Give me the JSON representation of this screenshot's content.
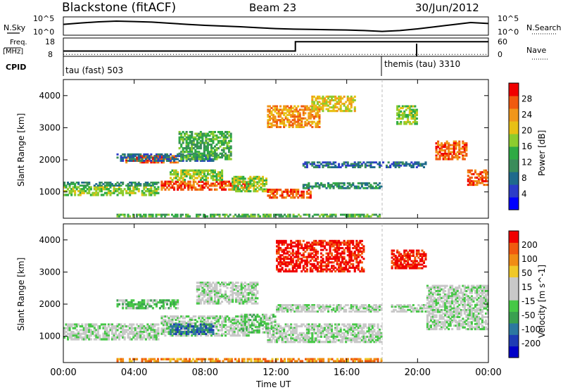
{
  "header": {
    "station": "Blackstone (fitACF)",
    "beam": "Beam 23",
    "date": "30/Jun/2012"
  },
  "left_labels": {
    "nsky": "N.Sky",
    "freq": "Freq.",
    "freq_unit": "[MHz]",
    "cpid": "CPID"
  },
  "right_labels": {
    "nsearch": "N.Search",
    "nave": "Nave"
  },
  "cpid_labels": [
    {
      "text": "tau (fast) 503"
    },
    {
      "text": "themis (tau) 3310"
    }
  ],
  "colors": {
    "power": [
      "#0000ff",
      "#2c3cc8",
      "#1f6a8c",
      "#3a8c5a",
      "#2eaa44",
      "#8ccc2e",
      "#e8c014",
      "#f0961a",
      "#f05a0f",
      "#f00000"
    ],
    "velocity": [
      "#0000c8",
      "#1e3cb4",
      "#2c78a0",
      "#3aa050",
      "#46c846",
      "#c8c8c8",
      "#c8c8c8",
      "#f0c828",
      "#f08c14",
      "#f05a0f",
      "#f00000"
    ]
  },
  "chart_data": [
    {
      "type": "line",
      "title": "",
      "xlabel": "",
      "ylabel": "N.Sky",
      "ylabel_right": "N.Search",
      "ticks_left": [
        "10^5",
        "10^0"
      ],
      "ticks_right": [
        "10^5",
        "10^0"
      ],
      "x_hours": [
        0,
        1,
        2,
        3,
        4,
        5,
        6,
        7,
        8,
        9,
        10,
        11,
        12,
        13,
        14,
        15,
        16,
        17,
        18,
        19,
        20,
        21,
        22,
        23,
        24
      ],
      "series": [
        {
          "name": "N.Sky",
          "values": [
            0.62,
            0.72,
            0.8,
            0.85,
            0.82,
            0.78,
            0.7,
            0.62,
            0.55,
            0.5,
            0.45,
            0.38,
            0.32,
            0.28,
            0.26,
            0.24,
            0.22,
            0.18,
            0.12,
            0.18,
            0.3,
            0.45,
            0.6,
            0.75,
            0.68
          ]
        }
      ]
    },
    {
      "type": "line",
      "title": "",
      "ylabel": "Freq. [MHz]",
      "ylabel_right": "Nave",
      "ticks_left": [
        "18",
        "8"
      ],
      "ticks_right": [
        "60",
        "0"
      ],
      "series": [
        {
          "name": "Freq.",
          "points": [
            [
              0,
              10.5
            ],
            [
              13.1,
              10.5
            ],
            [
              13.1,
              16.5
            ],
            [
              24,
              16.5
            ]
          ]
        },
        {
          "name": "Nave",
          "points": [
            [
              0,
              2
            ],
            [
              24,
              2
            ]
          ]
        }
      ],
      "cpid_changes": [
        [
          0,
          "tau (fast) 503"
        ],
        [
          18.0,
          "themis (tau) 3310"
        ]
      ],
      "marker_hours": [
        0,
        18.0,
        20.0
      ]
    },
    {
      "type": "heatmap",
      "title": "",
      "xlabel": "",
      "ylabel": "Slant Range [km]",
      "ylim": [
        180,
        4500
      ],
      "yticks": [
        "1000",
        "2000",
        "3000",
        "4000"
      ],
      "colorbar_label": "Power [dB]",
      "colorbar_ticks": [
        "28",
        "24",
        "20",
        "16",
        "12",
        "8",
        "4"
      ],
      "regions": [
        {
          "t": [
            0.0,
            5.4
          ],
          "r": [
            880,
            1180
          ],
          "level": 5
        },
        {
          "t": [
            0.0,
            5.4
          ],
          "r": [
            1180,
            1320
          ],
          "level": 3
        },
        {
          "t": [
            3.5,
            6.5
          ],
          "r": [
            1900,
            2150
          ],
          "level": 8
        },
        {
          "t": [
            3.0,
            8.5
          ],
          "r": [
            1950,
            2200
          ],
          "level": 2
        },
        {
          "t": [
            5.5,
            10.5
          ],
          "r": [
            1050,
            1350
          ],
          "level": 8
        },
        {
          "t": [
            6.0,
            9.0
          ],
          "r": [
            1350,
            1700
          ],
          "level": 5
        },
        {
          "t": [
            6.5,
            9.5
          ],
          "r": [
            2000,
            2900
          ],
          "level": 4
        },
        {
          "t": [
            9.5,
            11.5
          ],
          "r": [
            1000,
            1500
          ],
          "level": 5
        },
        {
          "t": [
            11.5,
            14.0
          ],
          "r": [
            800,
            1100
          ],
          "level": 8
        },
        {
          "t": [
            11.5,
            14.5
          ],
          "r": [
            3000,
            3700
          ],
          "level": 7
        },
        {
          "t": [
            14.0,
            16.5
          ],
          "r": [
            3500,
            4000
          ],
          "level": 6
        },
        {
          "t": [
            13.5,
            18.0
          ],
          "r": [
            1100,
            1300
          ],
          "level": 3
        },
        {
          "t": [
            13.5,
            18.5
          ],
          "r": [
            1750,
            1950
          ],
          "level": 2
        },
        {
          "t": [
            18.5,
            20.5
          ],
          "r": [
            1750,
            1950
          ],
          "level": 2
        },
        {
          "t": [
            18.8,
            20.0
          ],
          "r": [
            3100,
            3700
          ],
          "level": 5
        },
        {
          "t": [
            21.0,
            22.8
          ],
          "r": [
            2000,
            2600
          ],
          "level": 8
        },
        {
          "t": [
            22.8,
            24.0
          ],
          "r": [
            1200,
            1700
          ],
          "level": 8
        },
        {
          "t": [
            3.0,
            18.0
          ],
          "r": [
            220,
            320
          ],
          "level": 4
        }
      ]
    },
    {
      "type": "heatmap",
      "title": "",
      "xlabel": "Time UT",
      "ylabel": "Slant Range [km]",
      "ylim": [
        180,
        4500
      ],
      "yticks": [
        "1000",
        "2000",
        "3000",
        "4000"
      ],
      "xticks": [
        "00:00",
        "04:00",
        "08:00",
        "12:00",
        "16:00",
        "20:00",
        "00:00"
      ],
      "colorbar_label": "Velocity [m s^-1]",
      "colorbar_ticks": [
        "200",
        "100",
        "50",
        "15",
        "-15",
        "-50",
        "-100",
        "-200"
      ],
      "regions": [
        {
          "t": [
            0.0,
            5.4
          ],
          "r": [
            880,
            1400
          ],
          "level": 5
        },
        {
          "t": [
            3.0,
            6.5
          ],
          "r": [
            1850,
            2150
          ],
          "level": 4
        },
        {
          "t": [
            5.5,
            10.5
          ],
          "r": [
            1000,
            1650
          ],
          "level": 5
        },
        {
          "t": [
            6.0,
            8.5
          ],
          "r": [
            1050,
            1400
          ],
          "level": 2
        },
        {
          "t": [
            7.5,
            11.0
          ],
          "r": [
            2000,
            2700
          ],
          "level": 5
        },
        {
          "t": [
            10.0,
            12.0
          ],
          "r": [
            1100,
            1700
          ],
          "level": 4
        },
        {
          "t": [
            11.5,
            18.0
          ],
          "r": [
            800,
            1400
          ],
          "level": 5
        },
        {
          "t": [
            12.0,
            18.0
          ],
          "r": [
            1750,
            2000
          ],
          "level": 5
        },
        {
          "t": [
            12.0,
            17.0
          ],
          "r": [
            3000,
            4000
          ],
          "level": 10
        },
        {
          "t": [
            18.5,
            20.5
          ],
          "r": [
            3100,
            3700
          ],
          "level": 10
        },
        {
          "t": [
            18.5,
            21.0
          ],
          "r": [
            1750,
            2000
          ],
          "level": 5
        },
        {
          "t": [
            20.5,
            24.0
          ],
          "r": [
            1200,
            2600
          ],
          "level": 5
        },
        {
          "t": [
            3.0,
            18.0
          ],
          "r": [
            200,
            320
          ],
          "level": 8
        }
      ]
    }
  ]
}
